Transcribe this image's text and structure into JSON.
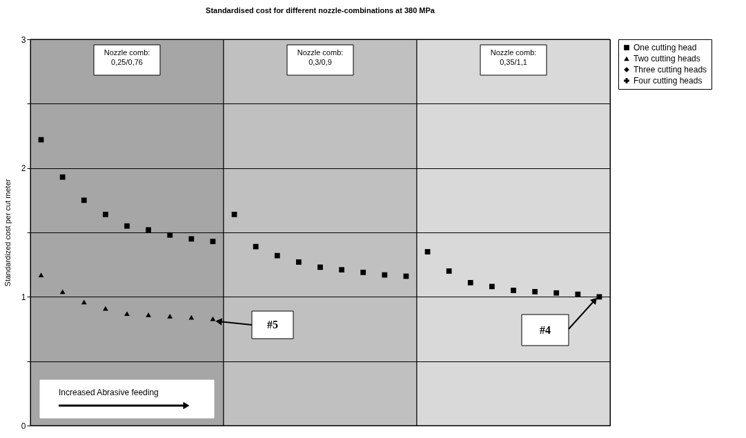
{
  "chart_data": {
    "type": "scatter",
    "title": "Standardised cost for different nozzle-combinations at 380 MPa",
    "ylabel": "Standardized cost per cut meter",
    "categories": [
      null,
      null,
      null,
      null,
      null,
      null,
      null,
      null,
      null,
      null,
      null,
      null,
      null,
      null,
      null,
      null,
      null,
      null,
      null,
      null,
      null,
      null,
      null,
      null,
      null,
      null,
      null
    ],
    "ylim": [
      0,
      3
    ],
    "yticks": [
      0,
      {
        "value": 0.5,
        "label": null
      },
      1,
      {
        "value": 1.5,
        "label": null
      },
      2,
      {
        "value": 2.5,
        "label": null
      },
      3
    ],
    "tick_labels": "y",
    "grid": "y",
    "legend": "right",
    "series": [
      {
        "name": "One cutting head",
        "color": "#000000",
        "marker": "square",
        "values": [
          2.22,
          1.93,
          1.75,
          1.64,
          1.55,
          1.52,
          1.48,
          1.45,
          1.43,
          1.64,
          1.39,
          1.32,
          1.27,
          1.23,
          1.21,
          1.19,
          1.17,
          1.16,
          1.35,
          1.2,
          1.11,
          1.08,
          1.05,
          1.04,
          1.03,
          1.02,
          1.0
        ]
      },
      {
        "name": "Two cutting heads",
        "color": "#000000",
        "marker": "triangle",
        "values": [
          1.17,
          1.04,
          0.96,
          0.91,
          0.87,
          0.86,
          0.85,
          0.84,
          0.83,
          null,
          null,
          null,
          null,
          null,
          null,
          null,
          null,
          null,
          null,
          null,
          null,
          null,
          null,
          null,
          null,
          null,
          null
        ]
      },
      {
        "name": "Three cutting heads",
        "color": "#000000",
        "marker": "diamond",
        "values": [
          null,
          null,
          null,
          null,
          null,
          null,
          null,
          null,
          null,
          null,
          null,
          null,
          null,
          null,
          null,
          null,
          null,
          null,
          null,
          null,
          null,
          null,
          null,
          null,
          null,
          null,
          null
        ]
      },
      {
        "name": "Four cutting heads",
        "color": "#000000",
        "marker": "cross",
        "values": [
          null,
          null,
          null,
          null,
          null,
          null,
          null,
          null,
          null,
          null,
          null,
          null,
          null,
          null,
          null,
          null,
          null,
          null,
          null,
          null,
          null,
          null,
          null,
          null,
          null,
          null,
          null
        ]
      }
    ],
    "annotations": [
      "Nozzle comb:\n0,25/0,76",
      "Nozzle comb:\n0,3/0,9",
      "Nozzle comb:\n0,35/1,1",
      "#5",
      "#4",
      "Increased Abrasive feeding"
    ]
  }
}
